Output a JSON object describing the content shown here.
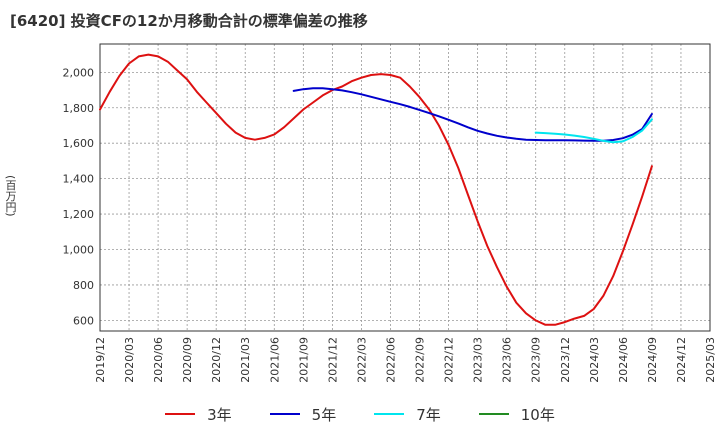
{
  "chart_data": {
    "type": "line",
    "title": "[6420]  投資CFの12か月移動合計の標準偏差の推移",
    "ylabel": "(百万円)",
    "xlabel": "",
    "ylim": [
      540,
      2160
    ],
    "yticks": [
      600,
      800,
      1000,
      1200,
      1400,
      1600,
      1800,
      2000
    ],
    "ytick_labels": [
      "600",
      "800",
      "1,000",
      "1,200",
      "1,400",
      "1,600",
      "1,800",
      "2,000"
    ],
    "xticks": [
      "2019/12",
      "2020/03",
      "2020/06",
      "2020/09",
      "2020/12",
      "2021/03",
      "2021/06",
      "2021/09",
      "2021/12",
      "2022/03",
      "2022/06",
      "2022/09",
      "2022/12",
      "2023/03",
      "2023/06",
      "2023/09",
      "2023/12",
      "2024/03",
      "2024/06",
      "2024/09",
      "2024/12",
      "2025/03"
    ],
    "grid": true,
    "legend_position": "bottom",
    "series": [
      {
        "name": "3年",
        "color": "#dd1111",
        "x": [
          "2019/12",
          "2020/01",
          "2020/02",
          "2020/03",
          "2020/04",
          "2020/05",
          "2020/06",
          "2020/07",
          "2020/08",
          "2020/09",
          "2020/10",
          "2020/11",
          "2020/12",
          "2021/01",
          "2021/02",
          "2021/03",
          "2021/04",
          "2021/05",
          "2021/06",
          "2021/07",
          "2021/08",
          "2021/09",
          "2021/10",
          "2021/11",
          "2021/12",
          "2022/01",
          "2022/02",
          "2022/03",
          "2022/04",
          "2022/05",
          "2022/06",
          "2022/07",
          "2022/08",
          "2022/09",
          "2022/10",
          "2022/11",
          "2022/12",
          "2023/01",
          "2023/02",
          "2023/03",
          "2023/04",
          "2023/05",
          "2023/06",
          "2023/07",
          "2023/08",
          "2023/09",
          "2023/10",
          "2023/11",
          "2023/12",
          "2024/01",
          "2024/02",
          "2024/03",
          "2024/04",
          "2024/05",
          "2024/06",
          "2024/07",
          "2024/08",
          "2024/09"
        ],
        "values": [
          1790,
          1890,
          1980,
          2050,
          2090,
          2100,
          2090,
          2060,
          2010,
          1960,
          1890,
          1830,
          1770,
          1710,
          1660,
          1630,
          1620,
          1630,
          1650,
          1690,
          1740,
          1790,
          1830,
          1870,
          1900,
          1920,
          1950,
          1970,
          1985,
          1990,
          1985,
          1970,
          1920,
          1860,
          1790,
          1700,
          1590,
          1460,
          1310,
          1160,
          1020,
          900,
          790,
          700,
          640,
          600,
          575,
          575,
          590,
          610,
          625,
          665,
          740,
          850,
          990,
          1140,
          1300,
          1470
        ]
      },
      {
        "name": "5年",
        "color": "#0000cc",
        "x": [
          "2021/08",
          "2021/09",
          "2021/10",
          "2021/11",
          "2021/12",
          "2022/01",
          "2022/02",
          "2022/03",
          "2022/04",
          "2022/05",
          "2022/06",
          "2022/07",
          "2022/08",
          "2022/09",
          "2022/10",
          "2022/11",
          "2022/12",
          "2023/01",
          "2023/02",
          "2023/03",
          "2023/04",
          "2023/05",
          "2023/06",
          "2023/07",
          "2023/08",
          "2023/09",
          "2023/10",
          "2023/11",
          "2023/12",
          "2024/01",
          "2024/02",
          "2024/03",
          "2024/04",
          "2024/05",
          "2024/06",
          "2024/07",
          "2024/08",
          "2024/09"
        ],
        "values": [
          1895,
          1905,
          1910,
          1910,
          1905,
          1898,
          1888,
          1876,
          1862,
          1848,
          1834,
          1820,
          1805,
          1788,
          1770,
          1752,
          1732,
          1712,
          1690,
          1670,
          1655,
          1642,
          1632,
          1625,
          1620,
          1618,
          1617,
          1617,
          1617,
          1616,
          1615,
          1614,
          1614,
          1618,
          1628,
          1648,
          1680,
          1765
        ]
      },
      {
        "name": "7年",
        "color": "#00e5ee",
        "x": [
          "2023/09",
          "2023/10",
          "2023/11",
          "2023/12",
          "2024/01",
          "2024/02",
          "2024/03",
          "2024/04",
          "2024/05",
          "2024/06",
          "2024/07",
          "2024/08",
          "2024/09"
        ],
        "values": [
          1660,
          1657,
          1653,
          1649,
          1643,
          1635,
          1625,
          1613,
          1605,
          1610,
          1635,
          1672,
          1735
        ]
      },
      {
        "name": "10年",
        "color": "#228b22",
        "x": [],
        "values": []
      }
    ]
  }
}
